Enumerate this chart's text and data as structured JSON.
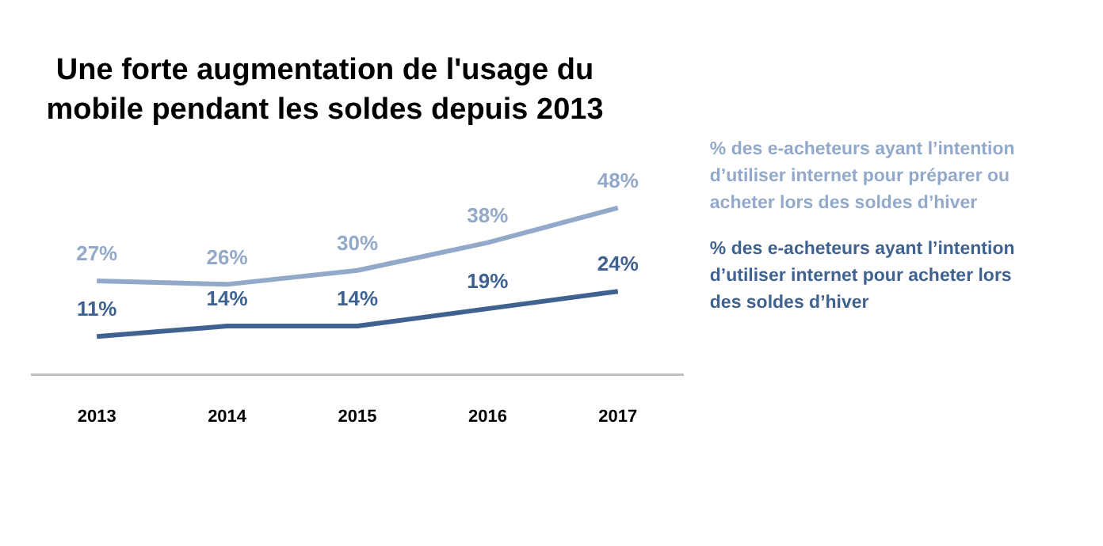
{
  "chart_data": {
    "type": "line",
    "title": "Une forte augmentation de l'usage du mobile pendant les soldes depuis 2013",
    "categories": [
      "2013",
      "2014",
      "2015",
      "2016",
      "2017"
    ],
    "series": [
      {
        "name": "% des e-acheteurs ayant l’intention d’utiliser internet pour préparer ou acheter lors des soldes d’hiver",
        "color": "#93a9c9",
        "values": [
          27,
          26,
          30,
          38,
          48
        ],
        "value_labels": [
          "27%",
          "26%",
          "30%",
          "38%",
          "48%"
        ]
      },
      {
        "name": "% des e-acheteurs ayant l’intention d’utiliser internet pour acheter lors des soldes d’hiver",
        "color": "#3f6290",
        "values": [
          11,
          14,
          14,
          19,
          24
        ],
        "value_labels": [
          "11%",
          "14%",
          "14%",
          "19%",
          "24%"
        ]
      }
    ],
    "tick_labels": "x",
    "grid": false,
    "legend": false,
    "marker": "none",
    "line_style": "solid"
  }
}
